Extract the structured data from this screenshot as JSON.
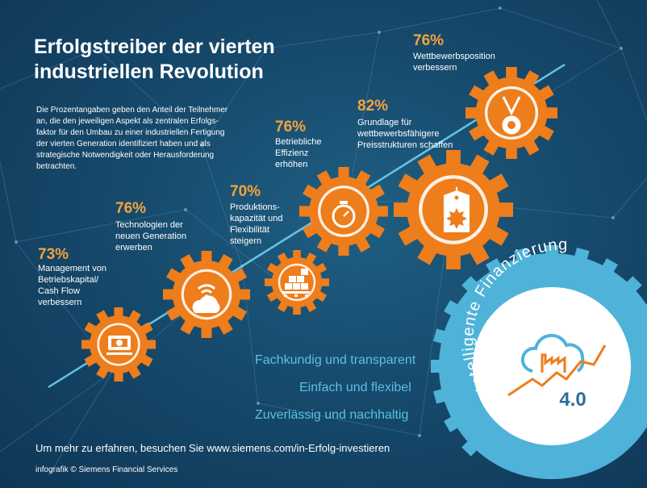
{
  "title_line1": "Erfolgstreiber der vierten",
  "title_line2": "industriellen Revolution",
  "intro": "Die Prozentangaben geben den Anteil der Teilnehmer an, die den jeweiligen Aspekt als zentralen Erfolgs- faktor für den Umbau zu einer industriellen Fertigung der vierten Generation identifiziert haben und als strategische Notwendigkeit oder Herausforderung betrachten.",
  "drivers": [
    {
      "percent": "73%",
      "label": "Management von Betriebskapital/ Cash Flow verbessern",
      "icon": "banknote-icon"
    },
    {
      "percent": "76%",
      "label": "Technologien der neuen Generation erwerben",
      "icon": "cloud-wifi-icon"
    },
    {
      "percent": "70%",
      "label": "Produktions-kapazität und Flexibilität steigern",
      "icon": "pallet-boxes-icon"
    },
    {
      "percent": "76%",
      "label": "Betriebliche Effizienz erhöhen",
      "icon": "stopwatch-icon"
    },
    {
      "percent": "82%",
      "label": "Grundlage für wettbewerbsfähigere Preisstrukturen schaffen",
      "icon": "price-tag-icon"
    },
    {
      "percent": "76%",
      "label": "Wettbewerbsposition verbessern",
      "icon": "medal-icon"
    }
  ],
  "ring_text": "Intelligente Finanzierung",
  "badge_version": "4.0",
  "taglines": [
    "Fachkundig und transparent",
    "Einfach und flexibel",
    "Zuverlässig und nachhaltig"
  ],
  "footer": "Um mehr zu erfahren, besuchen Sie www.siemens.com/in-Erfolg-investieren",
  "credit": "infografik © Siemens Financial Services",
  "colors": {
    "background": "#164a6c",
    "gear": "#ee7d1c",
    "accent_text": "#f6a23c",
    "teal": "#4fb3d9"
  }
}
